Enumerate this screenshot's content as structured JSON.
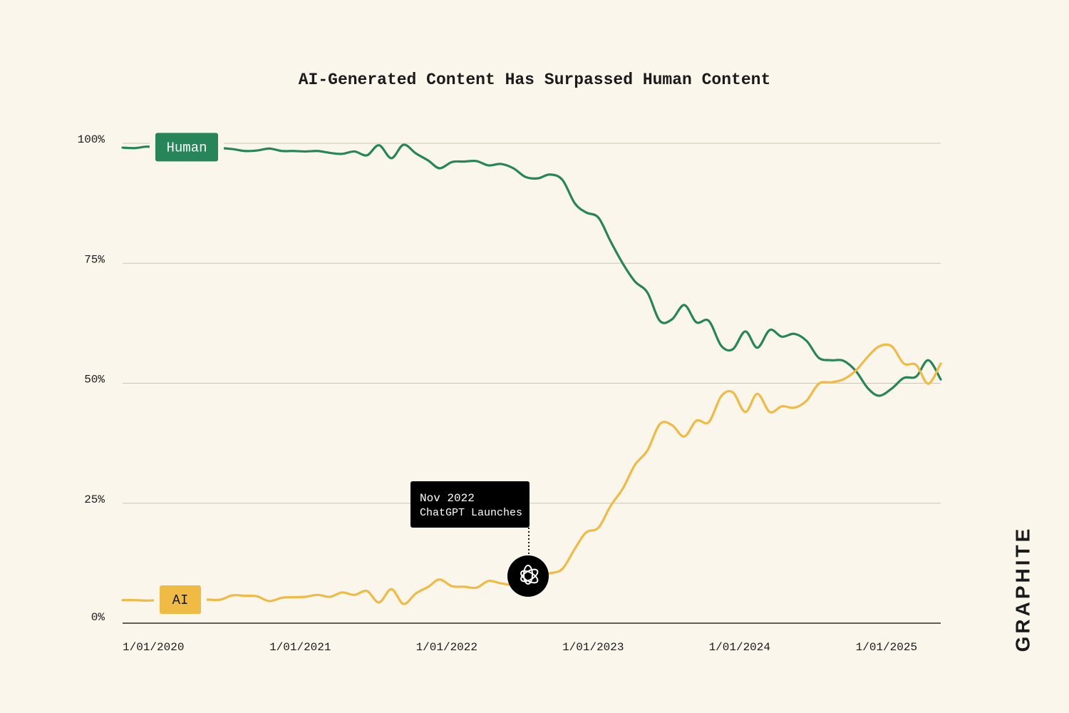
{
  "chart_data": {
    "type": "line",
    "title": "AI-Generated Content Has Surpassed Human Content",
    "x": [
      "2020-01-01",
      "2020-02-01",
      "2020-03-01",
      "2020-04-01",
      "2020-05-01",
      "2020-06-01",
      "2020-07-01",
      "2020-08-01",
      "2020-09-01",
      "2020-10-01",
      "2020-11-01",
      "2020-12-01",
      "2021-01-01",
      "2021-02-01",
      "2021-03-01",
      "2021-04-01",
      "2021-05-01",
      "2021-06-01",
      "2021-07-01",
      "2021-08-01",
      "2021-09-01",
      "2021-10-01",
      "2021-11-01",
      "2021-12-01",
      "2022-01-01",
      "2022-02-01",
      "2022-03-01",
      "2022-04-01",
      "2022-05-01",
      "2022-06-01",
      "2022-07-01",
      "2022-08-01",
      "2022-09-01",
      "2022-10-01",
      "2022-11-01",
      "2022-12-01",
      "2023-01-01",
      "2023-02-01",
      "2023-03-01",
      "2023-04-01",
      "2023-05-01",
      "2023-06-01",
      "2023-07-01",
      "2023-08-01",
      "2023-09-01",
      "2023-10-01",
      "2023-11-01",
      "2023-12-01",
      "2024-01-01",
      "2024-02-01",
      "2024-03-01",
      "2024-04-01",
      "2024-05-01",
      "2024-06-01",
      "2024-07-01",
      "2024-08-01",
      "2024-09-01",
      "2024-10-01",
      "2024-11-01",
      "2024-12-01",
      "2025-01-01",
      "2025-02-01",
      "2025-03-01",
      "2025-04-01",
      "2025-05-01",
      "2025-06-01",
      "2025-07-01",
      "2025-08-01"
    ],
    "series": [
      {
        "name": "Human",
        "color": "#27855a",
        "values": [
          99.1,
          99,
          99.3,
          99.1,
          99,
          99.2,
          99.1,
          99,
          99,
          98.8,
          98.4,
          98.5,
          98.9,
          98.4,
          98.4,
          98.3,
          98.4,
          98,
          97.8,
          98.3,
          97.5,
          99.6,
          96.9,
          99.7,
          97.9,
          96.4,
          94.8,
          96.1,
          96.2,
          96.3,
          95.4,
          95.7,
          94.8,
          93,
          92.7,
          93.5,
          92.4,
          87.5,
          85.6,
          84.5,
          79.6,
          74.9,
          71.2,
          68.9,
          63,
          63.3,
          66.3,
          62.7,
          63,
          57.8,
          57.1,
          60.8,
          57.4,
          61.1,
          59.7,
          60.3,
          58.8,
          55.3,
          54.8,
          54.7,
          52.6,
          48.9,
          47.4,
          48.9,
          51.1,
          51.4,
          54.8,
          50.8
        ]
      },
      {
        "name": "AI",
        "color": "#f0bb45",
        "values": [
          4.8,
          4.8,
          4.7,
          4.8,
          4.9,
          4.9,
          4.9,
          4.9,
          4.9,
          5.8,
          5.7,
          5.6,
          4.6,
          5.3,
          5.4,
          5.5,
          5.9,
          5.5,
          6.4,
          5.9,
          6.7,
          4.3,
          7.1,
          4,
          6.2,
          7.6,
          9.1,
          7.7,
          7.6,
          7.4,
          8.8,
          8.3,
          8,
          8.8,
          9.8,
          10.4,
          11.3,
          15.5,
          18.9,
          19.9,
          24.4,
          28.1,
          33,
          36,
          41.5,
          41.3,
          38.9,
          42.2,
          41.9,
          47.3,
          48.1,
          44,
          47.8,
          44,
          45.2,
          44.9,
          46.4,
          49.9,
          50.2,
          50.8,
          52.6,
          55.6,
          57.7,
          57.7,
          54.1,
          53.8,
          49.9,
          54.1
        ]
      }
    ],
    "xlim": [
      "2020-01-01",
      "2025-08-01"
    ],
    "xticks": [
      {
        "value": "2020-01-01",
        "label": "1/01/2020"
      },
      {
        "value": "2021-01-01",
        "label": "1/01/2021"
      },
      {
        "value": "2022-01-01",
        "label": "1/01/2022"
      },
      {
        "value": "2023-01-01",
        "label": "1/01/2023"
      },
      {
        "value": "2024-01-01",
        "label": "1/01/2024"
      },
      {
        "value": "2025-01-01",
        "label": "1/01/2025"
      }
    ],
    "ylim": [
      0,
      100
    ],
    "yticks": [
      {
        "value": 0,
        "label": "0%"
      },
      {
        "value": 25,
        "label": "25%"
      },
      {
        "value": 50,
        "label": "50%"
      },
      {
        "value": 75,
        "label": "75%"
      },
      {
        "value": 100,
        "label": "100%"
      }
    ],
    "grid": true,
    "annotation": {
      "lines": [
        "Nov 2022",
        "ChatGPT Launches"
      ]
    },
    "brand": "GRAPHITE"
  }
}
